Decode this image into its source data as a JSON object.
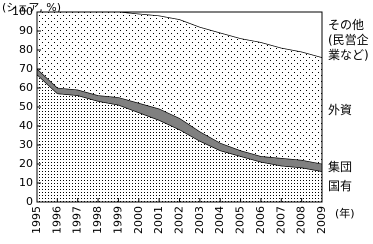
{
  "chart_data": {
    "type": "stacked_area",
    "y_label": "(シェア, %)",
    "x_label": "(年)",
    "categories": [
      "1995",
      "1996",
      "1997",
      "1998",
      "1999",
      "2000",
      "2001",
      "2002",
      "2003",
      "2004",
      "2005",
      "2006",
      "2007",
      "2008",
      "2009"
    ],
    "series": [
      {
        "name": "国有",
        "color": "#000000",
        "values": [
          67,
          57,
          56,
          53,
          51,
          47,
          43,
          38,
          32,
          27,
          24,
          21,
          19,
          18,
          16
        ]
      },
      {
        "name": "集団",
        "color": "#808080",
        "values": [
          3,
          3,
          3,
          3,
          4,
          5,
          6,
          6,
          5,
          4,
          3,
          3,
          4,
          4,
          4
        ]
      },
      {
        "name": "外資",
        "color": "#000000",
        "values": [
          30,
          40,
          41,
          44,
          45,
          47,
          49,
          52,
          55,
          58,
          59,
          60,
          58,
          57,
          56
        ]
      },
      {
        "name": "その他(民営企業など)",
        "color": "#ffffff",
        "values": [
          0,
          0,
          0,
          0,
          0,
          1,
          2,
          4,
          8,
          11,
          14,
          16,
          19,
          21,
          24
        ]
      }
    ],
    "ylim": [
      0,
      100
    ],
    "yticks": [
      0,
      10,
      20,
      30,
      40,
      50,
      60,
      70,
      80,
      90,
      100
    ],
    "grid": false
  }
}
